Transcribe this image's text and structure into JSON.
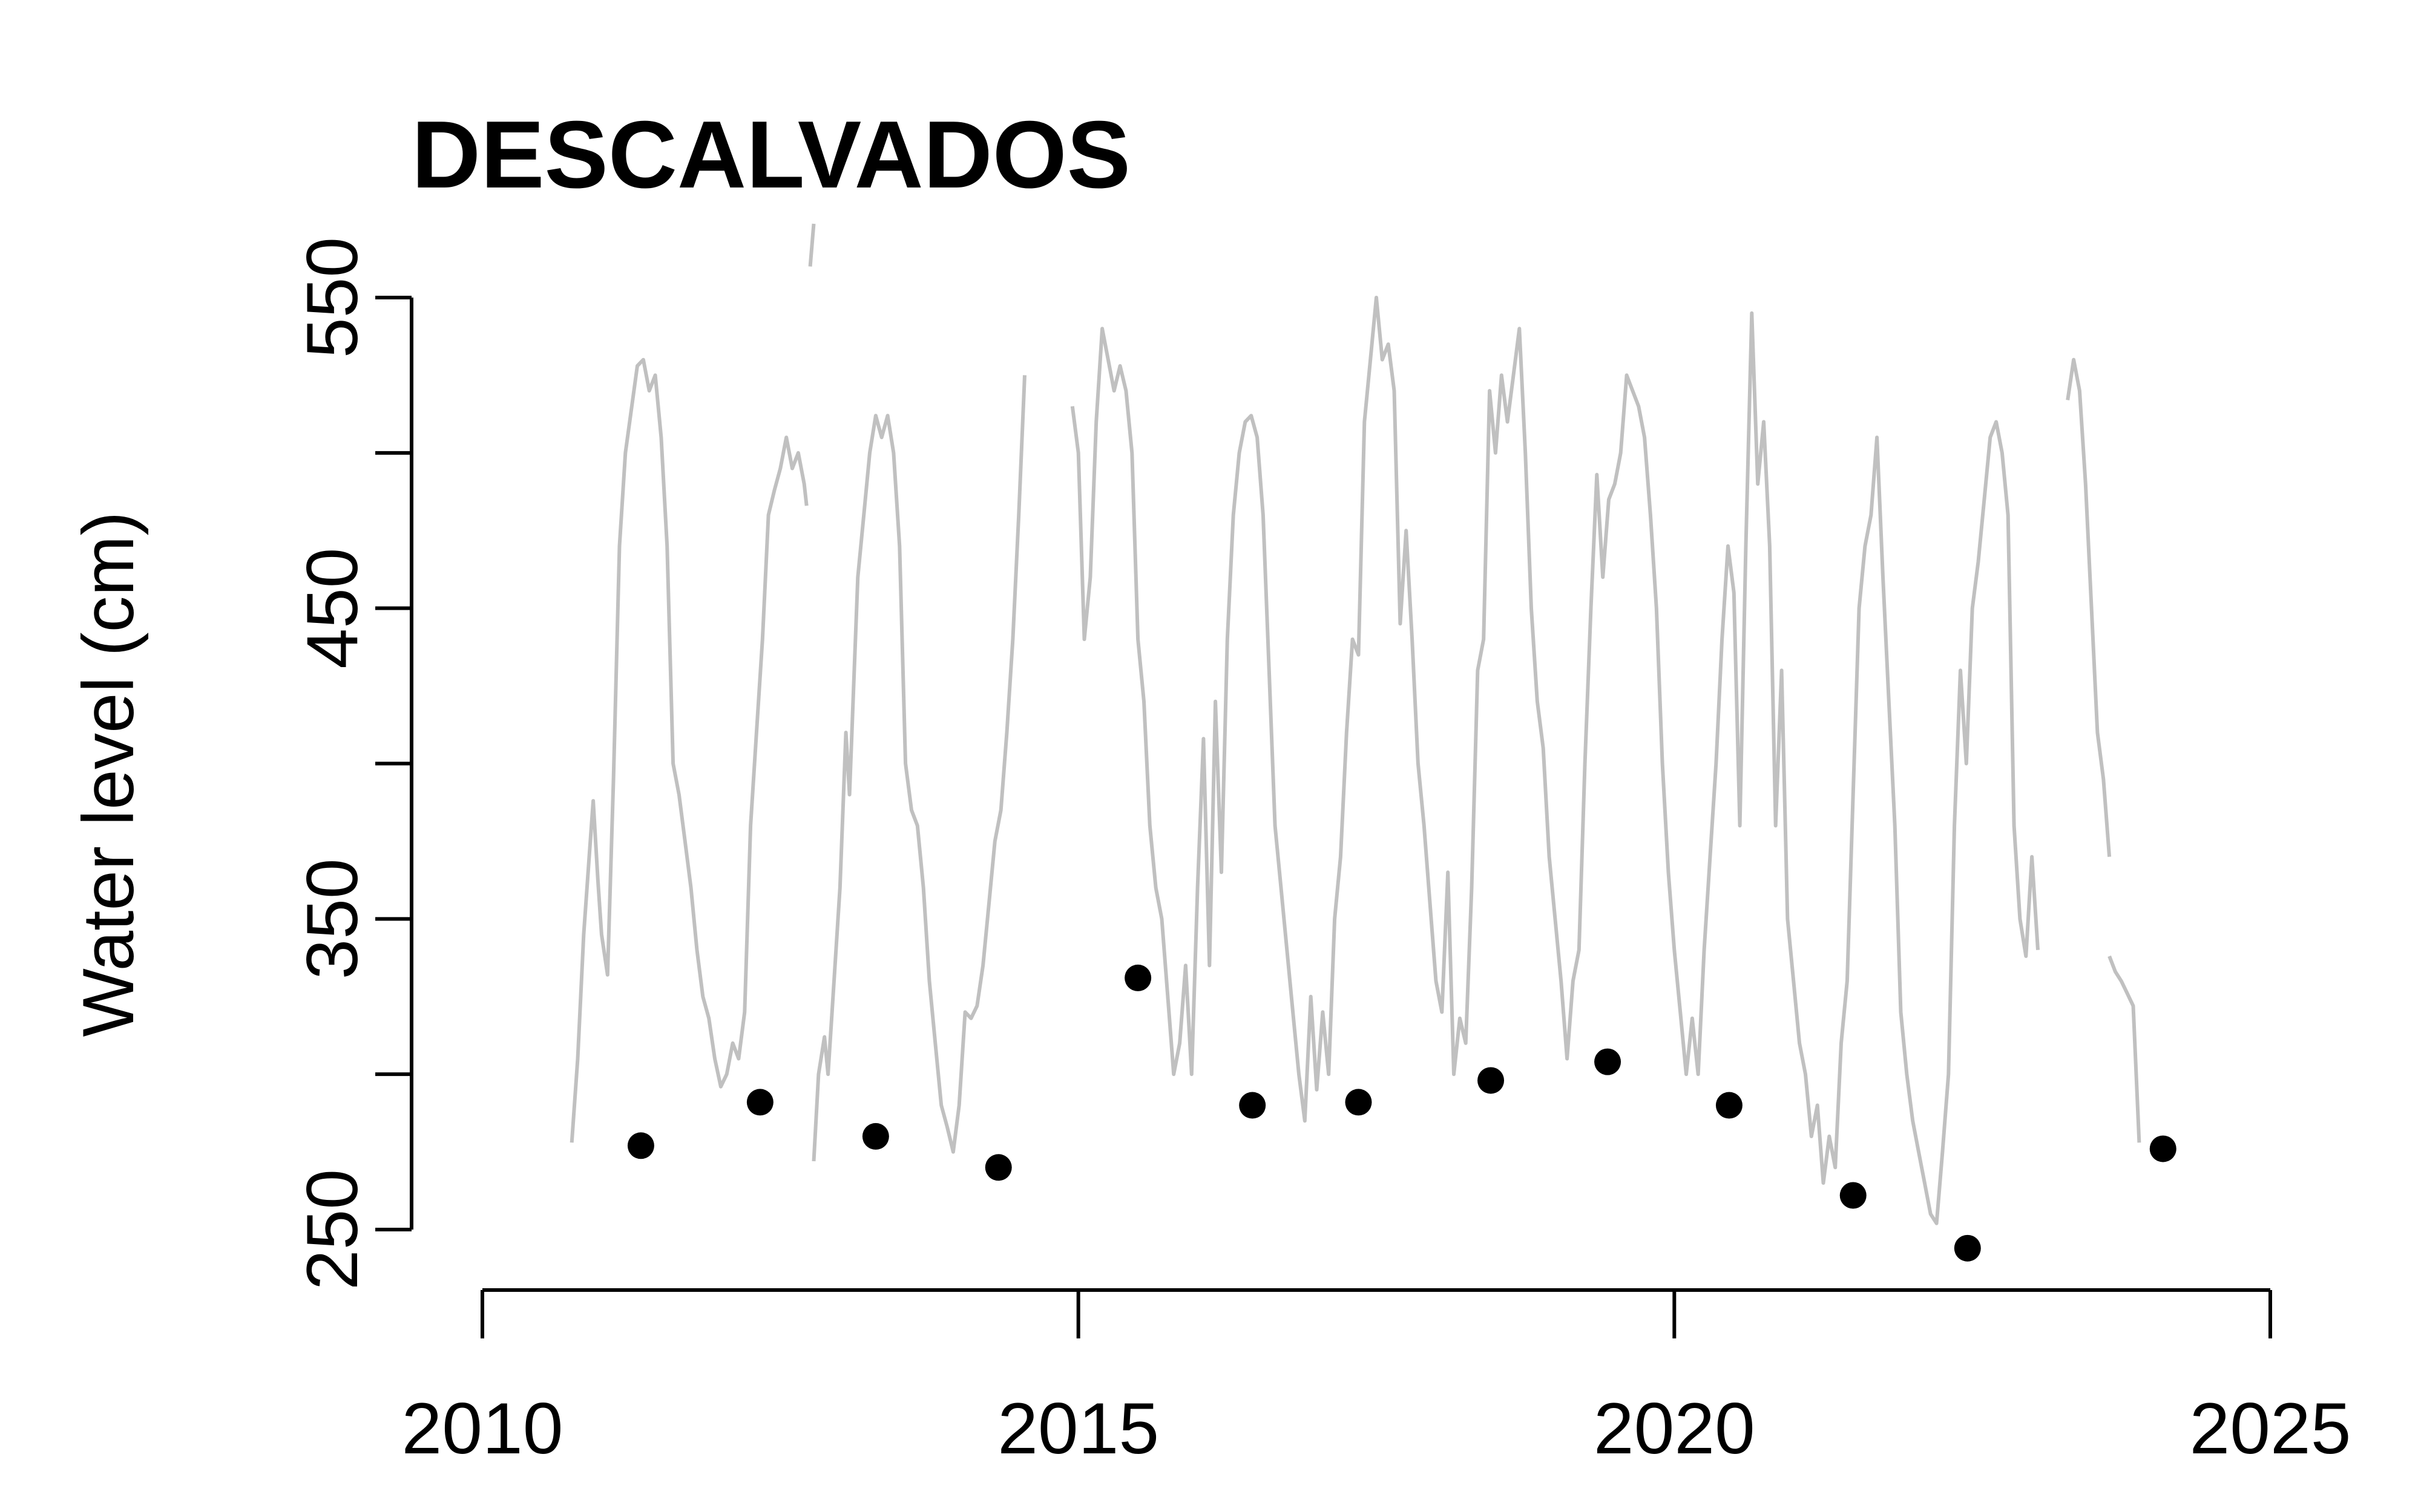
{
  "chart_data": {
    "type": "line",
    "title": "DESCALVADOS",
    "xlabel": "",
    "ylabel": "Water level (cm)",
    "xlim": [
      2010,
      2025
    ],
    "ylim": [
      250,
      550
    ],
    "x_ticks": [
      2010,
      2015,
      2020,
      2025
    ],
    "y_ticks": [
      250,
      300,
      350,
      400,
      450,
      500,
      550
    ],
    "y_tick_labels": [
      "250",
      "",
      "350",
      "",
      "450",
      "",
      "550"
    ],
    "grid": false,
    "series": [
      {
        "color": "#c0c0c0",
        "segments": [
          [
            [
              2010.75,
              278
            ],
            [
              2010.8,
              305
            ],
            [
              2010.85,
              345
            ],
            [
              2010.9,
              372
            ],
            [
              2010.93,
              388
            ],
            [
              2010.97,
              362
            ],
            [
              2011.0,
              345
            ],
            [
              2011.05,
              332
            ],
            [
              2011.1,
              395
            ],
            [
              2011.15,
              470
            ],
            [
              2011.2,
              500
            ],
            [
              2011.3,
              528
            ],
            [
              2011.35,
              530
            ],
            [
              2011.4,
              520
            ],
            [
              2011.45,
              525
            ],
            [
              2011.5,
              505
            ],
            [
              2011.55,
              470
            ],
            [
              2011.6,
              400
            ],
            [
              2011.65,
              390
            ],
            [
              2011.7,
              375
            ],
            [
              2011.75,
              360
            ],
            [
              2011.8,
              340
            ],
            [
              2011.85,
              325
            ],
            [
              2011.9,
              318
            ],
            [
              2011.95,
              305
            ],
            [
              2012.0,
              296
            ],
            [
              2012.05,
              300
            ],
            [
              2012.1,
              310
            ],
            [
              2012.15,
              305
            ],
            [
              2012.2,
              320
            ],
            [
              2012.25,
              380
            ],
            [
              2012.3,
              410
            ],
            [
              2012.35,
              440
            ],
            [
              2012.4,
              480
            ],
            [
              2012.45,
              488
            ],
            [
              2012.5,
              495
            ],
            [
              2012.55,
              505
            ],
            [
              2012.6,
              495
            ],
            [
              2012.65,
              500
            ],
            [
              2012.7,
              490
            ],
            [
              2012.72,
              483
            ]
          ],
          [
            [
              2012.75,
              560
            ],
            [
              2012.78,
              575
            ]
          ],
          [
            [
              2012.78,
              272
            ],
            [
              2012.82,
              300
            ],
            [
              2012.87,
              312
            ],
            [
              2012.9,
              300
            ],
            [
              2012.95,
              330
            ],
            [
              2013.0,
              360
            ],
            [
              2013.05,
              410
            ],
            [
              2013.08,
              390
            ],
            [
              2013.12,
              430
            ],
            [
              2013.15,
              460
            ],
            [
              2013.2,
              480
            ],
            [
              2013.25,
              500
            ],
            [
              2013.3,
              512
            ],
            [
              2013.35,
              505
            ],
            [
              2013.4,
              512
            ],
            [
              2013.45,
              500
            ],
            [
              2013.5,
              470
            ],
            [
              2013.55,
              400
            ],
            [
              2013.6,
              385
            ],
            [
              2013.65,
              380
            ],
            [
              2013.7,
              360
            ],
            [
              2013.75,
              330
            ],
            [
              2013.8,
              310
            ],
            [
              2013.85,
              290
            ],
            [
              2013.9,
              283
            ],
            [
              2013.95,
              275
            ],
            [
              2014.0,
              290
            ],
            [
              2014.05,
              320
            ],
            [
              2014.1,
              318
            ],
            [
              2014.15,
              322
            ],
            [
              2014.2,
              335
            ],
            [
              2014.25,
              355
            ],
            [
              2014.3,
              375
            ],
            [
              2014.35,
              385
            ],
            [
              2014.4,
              410
            ],
            [
              2014.45,
              440
            ],
            [
              2014.5,
              480
            ],
            [
              2014.55,
              525
            ]
          ],
          [
            [
              2014.95,
              515
            ],
            [
              2015.0,
              500
            ],
            [
              2015.05,
              440
            ],
            [
              2015.1,
              460
            ],
            [
              2015.15,
              510
            ],
            [
              2015.2,
              540
            ],
            [
              2015.25,
              530
            ],
            [
              2015.3,
              520
            ],
            [
              2015.35,
              528
            ],
            [
              2015.4,
              520
            ],
            [
              2015.45,
              500
            ],
            [
              2015.5,
              440
            ],
            [
              2015.55,
              420
            ],
            [
              2015.6,
              380
            ],
            [
              2015.65,
              360
            ],
            [
              2015.7,
              350
            ],
            [
              2015.75,
              325
            ],
            [
              2015.8,
              300
            ],
            [
              2015.85,
              310
            ],
            [
              2015.9,
              335
            ],
            [
              2015.95,
              300
            ],
            [
              2016.0,
              360
            ],
            [
              2016.05,
              408
            ],
            [
              2016.1,
              335
            ],
            [
              2016.15,
              420
            ],
            [
              2016.2,
              365
            ],
            [
              2016.25,
              440
            ],
            [
              2016.3,
              480
            ],
            [
              2016.35,
              500
            ],
            [
              2016.4,
              510
            ],
            [
              2016.45,
              512
            ],
            [
              2016.5,
              505
            ],
            [
              2016.55,
              480
            ],
            [
              2016.6,
              430
            ],
            [
              2016.65,
              380
            ],
            [
              2016.7,
              360
            ],
            [
              2016.75,
              340
            ],
            [
              2016.8,
              320
            ],
            [
              2016.85,
              300
            ],
            [
              2016.9,
              285
            ],
            [
              2016.95,
              325
            ],
            [
              2017.0,
              295
            ],
            [
              2017.05,
              320
            ],
            [
              2017.1,
              300
            ],
            [
              2017.15,
              350
            ],
            [
              2017.2,
              370
            ],
            [
              2017.25,
              410
            ],
            [
              2017.3,
              440
            ],
            [
              2017.35,
              435
            ],
            [
              2017.4,
              510
            ],
            [
              2017.45,
              530
            ],
            [
              2017.5,
              550
            ],
            [
              2017.55,
              530
            ],
            [
              2017.6,
              535
            ],
            [
              2017.65,
              520
            ],
            [
              2017.7,
              445
            ],
            [
              2017.75,
              475
            ],
            [
              2017.8,
              440
            ],
            [
              2017.85,
              400
            ],
            [
              2017.9,
              380
            ],
            [
              2017.95,
              355
            ],
            [
              2018.0,
              330
            ],
            [
              2018.05,
              320
            ],
            [
              2018.1,
              365
            ],
            [
              2018.15,
              300
            ],
            [
              2018.2,
              318
            ],
            [
              2018.25,
              310
            ],
            [
              2018.3,
              360
            ],
            [
              2018.35,
              430
            ],
            [
              2018.4,
              440
            ],
            [
              2018.45,
              520
            ],
            [
              2018.5,
              500
            ],
            [
              2018.55,
              525
            ],
            [
              2018.6,
              510
            ],
            [
              2018.65,
              525
            ],
            [
              2018.7,
              540
            ],
            [
              2018.75,
              500
            ],
            [
              2018.8,
              450
            ],
            [
              2018.85,
              420
            ],
            [
              2018.9,
              405
            ],
            [
              2018.95,
              370
            ],
            [
              2019.0,
              350
            ],
            [
              2019.05,
              330
            ],
            [
              2019.1,
              305
            ],
            [
              2019.15,
              330
            ],
            [
              2019.2,
              340
            ],
            [
              2019.25,
              400
            ],
            [
              2019.3,
              450
            ],
            [
              2019.35,
              493
            ],
            [
              2019.4,
              460
            ],
            [
              2019.45,
              485
            ],
            [
              2019.5,
              490
            ],
            [
              2019.55,
              500
            ],
            [
              2019.6,
              525
            ],
            [
              2019.65,
              520
            ],
            [
              2019.7,
              515
            ],
            [
              2019.75,
              505
            ],
            [
              2019.8,
              480
            ],
            [
              2019.85,
              450
            ],
            [
              2019.9,
              400
            ],
            [
              2019.95,
              365
            ],
            [
              2020.0,
              340
            ],
            [
              2020.05,
              320
            ],
            [
              2020.1,
              300
            ],
            [
              2020.15,
              318
            ],
            [
              2020.2,
              300
            ],
            [
              2020.25,
              340
            ],
            [
              2020.3,
              370
            ],
            [
              2020.35,
              400
            ],
            [
              2020.4,
              440
            ],
            [
              2020.45,
              470
            ],
            [
              2020.5,
              455
            ],
            [
              2020.55,
              380
            ],
            [
              2020.6,
              470
            ],
            [
              2020.65,
              545
            ],
            [
              2020.7,
              490
            ],
            [
              2020.75,
              510
            ],
            [
              2020.8,
              470
            ],
            [
              2020.85,
              380
            ],
            [
              2020.9,
              430
            ],
            [
              2020.95,
              350
            ],
            [
              2021.0,
              330
            ],
            [
              2021.05,
              310
            ],
            [
              2021.1,
              300
            ],
            [
              2021.15,
              280
            ],
            [
              2021.2,
              290
            ],
            [
              2021.25,
              265
            ],
            [
              2021.3,
              280
            ],
            [
              2021.35,
              270
            ],
            [
              2021.4,
              310
            ],
            [
              2021.45,
              330
            ],
            [
              2021.5,
              390
            ],
            [
              2021.55,
              450
            ],
            [
              2021.6,
              470
            ],
            [
              2021.65,
              480
            ],
            [
              2021.7,
              505
            ],
            [
              2021.75,
              460
            ],
            [
              2021.8,
              420
            ],
            [
              2021.85,
              380
            ],
            [
              2021.9,
              320
            ],
            [
              2021.95,
              300
            ],
            [
              2022.0,
              285
            ],
            [
              2022.05,
              275
            ],
            [
              2022.1,
              265
            ],
            [
              2022.15,
              255
            ],
            [
              2022.2,
              252
            ],
            [
              2022.25,
              275
            ],
            [
              2022.3,
              300
            ],
            [
              2022.35,
              380
            ],
            [
              2022.4,
              430
            ],
            [
              2022.45,
              400
            ],
            [
              2022.5,
              450
            ],
            [
              2022.55,
              465
            ],
            [
              2022.6,
              485
            ],
            [
              2022.65,
              505
            ],
            [
              2022.7,
              510
            ],
            [
              2022.75,
              500
            ],
            [
              2022.8,
              480
            ],
            [
              2022.85,
              380
            ],
            [
              2022.9,
              350
            ],
            [
              2022.95,
              338
            ],
            [
              2023.0,
              370
            ],
            [
              2023.05,
              340
            ]
          ],
          [
            [
              2023.3,
              517
            ],
            [
              2023.35,
              530
            ],
            [
              2023.4,
              520
            ],
            [
              2023.45,
              490
            ],
            [
              2023.5,
              450
            ],
            [
              2023.55,
              410
            ],
            [
              2023.6,
              395
            ],
            [
              2023.65,
              370
            ]
          ],
          [
            [
              2023.65,
              338
            ],
            [
              2023.7,
              333
            ],
            [
              2023.75,
              330
            ],
            [
              2023.8,
              326
            ],
            [
              2023.85,
              322
            ],
            [
              2023.9,
              278
            ]
          ]
        ]
      },
      {
        "color": "#000000",
        "type": "scatter",
        "x": [
          2011.33,
          2012.33,
          2013.3,
          2014.33,
          2015.5,
          2016.46,
          2017.35,
          2018.46,
          2019.44,
          2020.46,
          2021.5,
          2022.46,
          2024.1
        ],
        "y": [
          277,
          291,
          280,
          270,
          331,
          290,
          291,
          298,
          304,
          290,
          261,
          244,
          276
        ]
      }
    ]
  }
}
